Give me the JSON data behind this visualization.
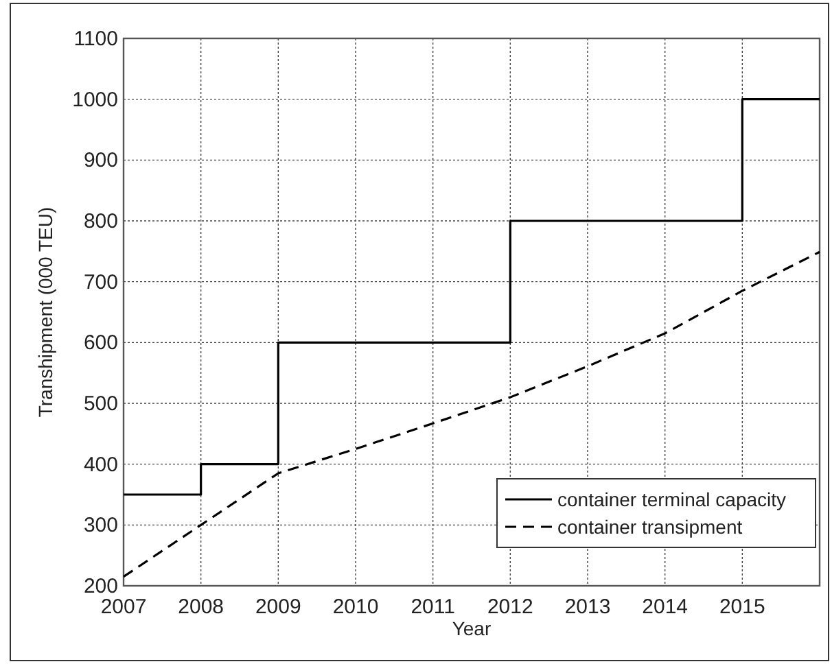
{
  "chart_data": {
    "type": "line",
    "xlabel": "Year",
    "ylabel": "Transhipment (000 TEU)",
    "xlim": [
      2007,
      2016
    ],
    "xticks": [
      2007,
      2008,
      2009,
      2010,
      2011,
      2012,
      2013,
      2014,
      2015
    ],
    "ylim": [
      200,
      1100
    ],
    "yticks": [
      200,
      300,
      400,
      500,
      600,
      700,
      800,
      900,
      1000,
      1100
    ],
    "grid": true,
    "legend": "bottom right",
    "marker": "none",
    "series": [
      {
        "name": "container terminal capacity",
        "type": "step",
        "color": "#000000",
        "line_style": "solid",
        "x": [
          2007,
          2008,
          2009,
          2012,
          2015,
          2016
        ],
        "values": [
          350,
          400,
          600,
          800,
          1000,
          1000
        ]
      },
      {
        "name": "container transipment",
        "type": "line",
        "color": "#000000",
        "line_style": "dashed",
        "x": [
          2007,
          2008,
          2009,
          2010,
          2011,
          2012,
          2013,
          2014,
          2015,
          2016
        ],
        "values": [
          215,
          300,
          385,
          425,
          467,
          510,
          561,
          615,
          685,
          749
        ]
      }
    ]
  }
}
